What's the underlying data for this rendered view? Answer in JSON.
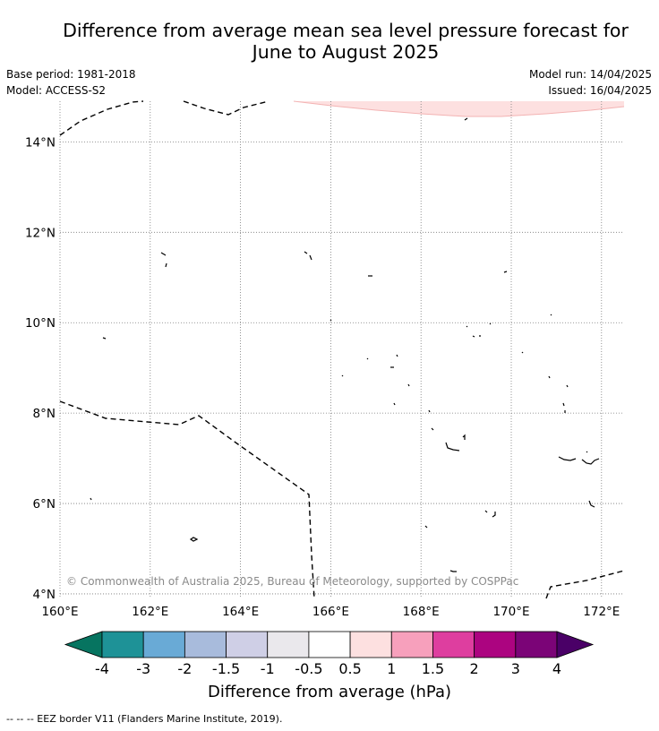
{
  "title_line1": "Difference from average mean sea level pressure forecast for",
  "title_line2": "June to August 2025",
  "base_period": "Base period: 1981-2018",
  "model": "Model: ACCESS-S2",
  "model_run": "Model run: 14/04/2025",
  "issued": "Issued: 16/04/2025",
  "copyright": "© Commonwealth of Australia 2025, Bureau of Meteorology, supported by COSPPac",
  "footer_legend": "--  --  -- EEZ border V11 (Flanders Marine Institute, 2019).",
  "map": {
    "lon_range": [
      160,
      172.5
    ],
    "lat_range": [
      3.9,
      14.9
    ],
    "lat_ticks": [
      "14°N",
      "12°N",
      "10°N",
      "8°N",
      "6°N",
      "4°N"
    ],
    "lon_ticks": [
      "160°E",
      "162°E",
      "164°E",
      "166°E",
      "168°E",
      "170°E",
      "172°E"
    ],
    "grid": true,
    "anomaly_area": {
      "category": "0.5 to 1",
      "color": "#fde0e0"
    }
  },
  "colorbar": {
    "title": "Difference from average (hPa)",
    "labels": [
      "-4",
      "-3",
      "-2",
      "-1.5",
      "-1",
      "-0.5",
      "0.5",
      "1",
      "1.5",
      "2",
      "3",
      "4"
    ],
    "colors": [
      "#067460",
      "#1e9297",
      "#69aad6",
      "#a8bbdc",
      "#cfcfe6",
      "#eae8ec",
      "#ffffff",
      "#fde0e0",
      "#f7a0bc",
      "#de3e9f",
      "#ac0480",
      "#7b0477",
      "#4a0067"
    ]
  }
}
